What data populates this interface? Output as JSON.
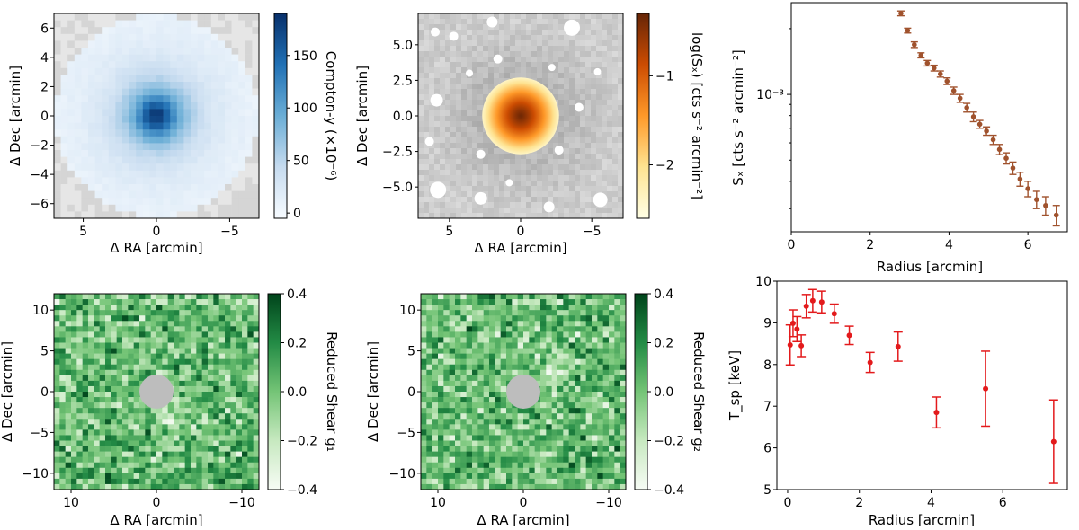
{
  "chart_data": [
    {
      "id": "compton_y_map",
      "type": "heatmap",
      "xlabel": "Δ RA [arcmin]",
      "ylabel": "Δ Dec [arcmin]",
      "xlim": [
        7,
        -7
      ],
      "ylim": [
        -7,
        7
      ],
      "xticks": [
        "5",
        "0",
        "−5"
      ],
      "yticks": [
        "−6",
        "−4",
        "−2",
        "0",
        "2",
        "4",
        "6"
      ],
      "colorbar_label": "Compton-y (×10⁻⁶)",
      "colorbar_ticks": [
        "0",
        "50",
        "100",
        "150"
      ],
      "colorbar_range": [
        -5,
        190
      ],
      "colormap": [
        "#f7fbff",
        "#c6dbef",
        "#6baed6",
        "#2171b5",
        "#08306b"
      ],
      "peak": 185,
      "core_radius": 1.6,
      "grid": 30
    },
    {
      "id": "xray_map",
      "type": "heatmap",
      "xlabel": "Δ RA [arcmin]",
      "ylabel": "Δ Dec [arcmin]",
      "xlim": [
        7.2,
        -7.2
      ],
      "ylim": [
        -7.2,
        7.2
      ],
      "xticks": [
        "5",
        "0",
        "−5"
      ],
      "yticks": [
        "−5.0",
        "−2.5",
        "0.0",
        "2.5",
        "5.0"
      ],
      "colorbar_label": "log(Sₓ) [cts s⁻² arcmin⁻²]",
      "colorbar_ticks": [
        "−1",
        "−2"
      ],
      "colorbar_range": [
        -2.6,
        -0.3
      ],
      "colormap": [
        "#ffffe5",
        "#fee391",
        "#fe9929",
        "#cc4c02",
        "#662506"
      ],
      "source_radius": 2.7
    },
    {
      "id": "sx_profile",
      "type": "scatter",
      "xlabel": "Radius [arcmin]",
      "ylabel": "Sₓ [cts s⁻² arcmin⁻²]",
      "xlim": [
        0,
        7
      ],
      "ylim": [
        0.000235,
        0.00263
      ],
      "yscale": "log",
      "xticks": [
        "0",
        "2",
        "4",
        "6"
      ],
      "ytick_label": "10⁻³",
      "color": "#a0522d",
      "points": [
        {
          "x": 2.78,
          "y": 0.00235,
          "err": 6e-05
        },
        {
          "x": 2.95,
          "y": 0.00196,
          "err": 5e-05
        },
        {
          "x": 3.12,
          "y": 0.00169,
          "err": 5e-05
        },
        {
          "x": 3.29,
          "y": 0.00151,
          "err": 4e-05
        },
        {
          "x": 3.45,
          "y": 0.00139,
          "err": 4e-05
        },
        {
          "x": 3.62,
          "y": 0.00132,
          "err": 4e-05
        },
        {
          "x": 3.78,
          "y": 0.00124,
          "err": 4e-05
        },
        {
          "x": 3.95,
          "y": 0.00115,
          "err": 4e-05
        },
        {
          "x": 4.12,
          "y": 0.00104,
          "err": 4e-05
        },
        {
          "x": 4.28,
          "y": 0.00096,
          "err": 4e-05
        },
        {
          "x": 4.45,
          "y": 0.00087,
          "err": 4e-05
        },
        {
          "x": 4.62,
          "y": 0.00079,
          "err": 4e-05
        },
        {
          "x": 4.78,
          "y": 0.00073,
          "err": 3e-05
        },
        {
          "x": 4.95,
          "y": 0.00068,
          "err": 3e-05
        },
        {
          "x": 5.12,
          "y": 0.00062,
          "err": 3e-05
        },
        {
          "x": 5.28,
          "y": 0.00056,
          "err": 3e-05
        },
        {
          "x": 5.45,
          "y": 0.00051,
          "err": 3e-05
        },
        {
          "x": 5.62,
          "y": 0.00046,
          "err": 3e-05
        },
        {
          "x": 5.8,
          "y": 0.00041,
          "err": 3e-05
        },
        {
          "x": 6.0,
          "y": 0.00037,
          "err": 3e-05
        },
        {
          "x": 6.22,
          "y": 0.00033,
          "err": 3e-05
        },
        {
          "x": 6.45,
          "y": 0.00031,
          "err": 3e-05
        },
        {
          "x": 6.72,
          "y": 0.00028,
          "err": 3e-05
        }
      ]
    },
    {
      "id": "shear_g1_map",
      "type": "heatmap",
      "xlabel": "Δ RA [arcmin]",
      "ylabel": "Δ Dec [arcmin]",
      "xlim": [
        12,
        -12
      ],
      "ylim": [
        -12,
        12
      ],
      "xticks": [
        "10",
        "0",
        "−10"
      ],
      "yticks": [
        "−10",
        "−5",
        "0",
        "5",
        "10"
      ],
      "colorbar_label": "Reduced Shear g₁",
      "colorbar_ticks": [
        "−0.4",
        "−0.2",
        "0.0",
        "0.2",
        "0.4"
      ],
      "colorbar_range": [
        -0.4,
        0.4
      ],
      "colormap": [
        "#f7fcf5",
        "#c7e9c0",
        "#74c476",
        "#238b45",
        "#00441b"
      ],
      "mask_radius": 2,
      "grid": 36
    },
    {
      "id": "shear_g2_map",
      "type": "heatmap",
      "xlabel": "Δ RA [arcmin]",
      "ylabel": "Δ Dec [arcmin]",
      "xlim": [
        12,
        -12
      ],
      "ylim": [
        -12,
        12
      ],
      "xticks": [
        "10",
        "0",
        "−10"
      ],
      "yticks": [
        "−10",
        "−5",
        "0",
        "5",
        "10"
      ],
      "colorbar_label": "Reduced Shear g₂",
      "colorbar_ticks": [
        "−0.4",
        "−0.2",
        "0.0",
        "0.2",
        "0.4"
      ],
      "colorbar_range": [
        -0.4,
        0.4
      ],
      "colormap": [
        "#f7fcf5",
        "#c7e9c0",
        "#74c476",
        "#238b45",
        "#00441b"
      ],
      "mask_radius": 2,
      "grid": 36
    },
    {
      "id": "temperature_profile",
      "type": "scatter",
      "xlabel": "Radius [arcmin]",
      "ylabel": "T_sp [keV]",
      "xlim": [
        -0.3,
        7.8
      ],
      "ylim": [
        5,
        10
      ],
      "xticks": [
        "0",
        "2",
        "4",
        "6"
      ],
      "yticks": [
        "5",
        "6",
        "7",
        "8",
        "9",
        "10"
      ],
      "color": "#e31a1c",
      "points": [
        {
          "x": 0.07,
          "y": 8.47,
          "err": 0.48
        },
        {
          "x": 0.15,
          "y": 8.99,
          "err": 0.32
        },
        {
          "x": 0.26,
          "y": 8.85,
          "err": 0.3
        },
        {
          "x": 0.38,
          "y": 8.45,
          "err": 0.26
        },
        {
          "x": 0.52,
          "y": 9.4,
          "err": 0.28
        },
        {
          "x": 0.7,
          "y": 9.53,
          "err": 0.27
        },
        {
          "x": 0.95,
          "y": 9.5,
          "err": 0.26
        },
        {
          "x": 1.3,
          "y": 9.22,
          "err": 0.23
        },
        {
          "x": 1.72,
          "y": 8.7,
          "err": 0.22
        },
        {
          "x": 2.3,
          "y": 8.05,
          "err": 0.24
        },
        {
          "x": 3.08,
          "y": 8.43,
          "err": 0.35
        },
        {
          "x": 4.15,
          "y": 6.85,
          "err": 0.37
        },
        {
          "x": 5.52,
          "y": 7.42,
          "err": 0.9
        },
        {
          "x": 7.42,
          "y": 6.15,
          "err": 1.0
        }
      ]
    }
  ]
}
